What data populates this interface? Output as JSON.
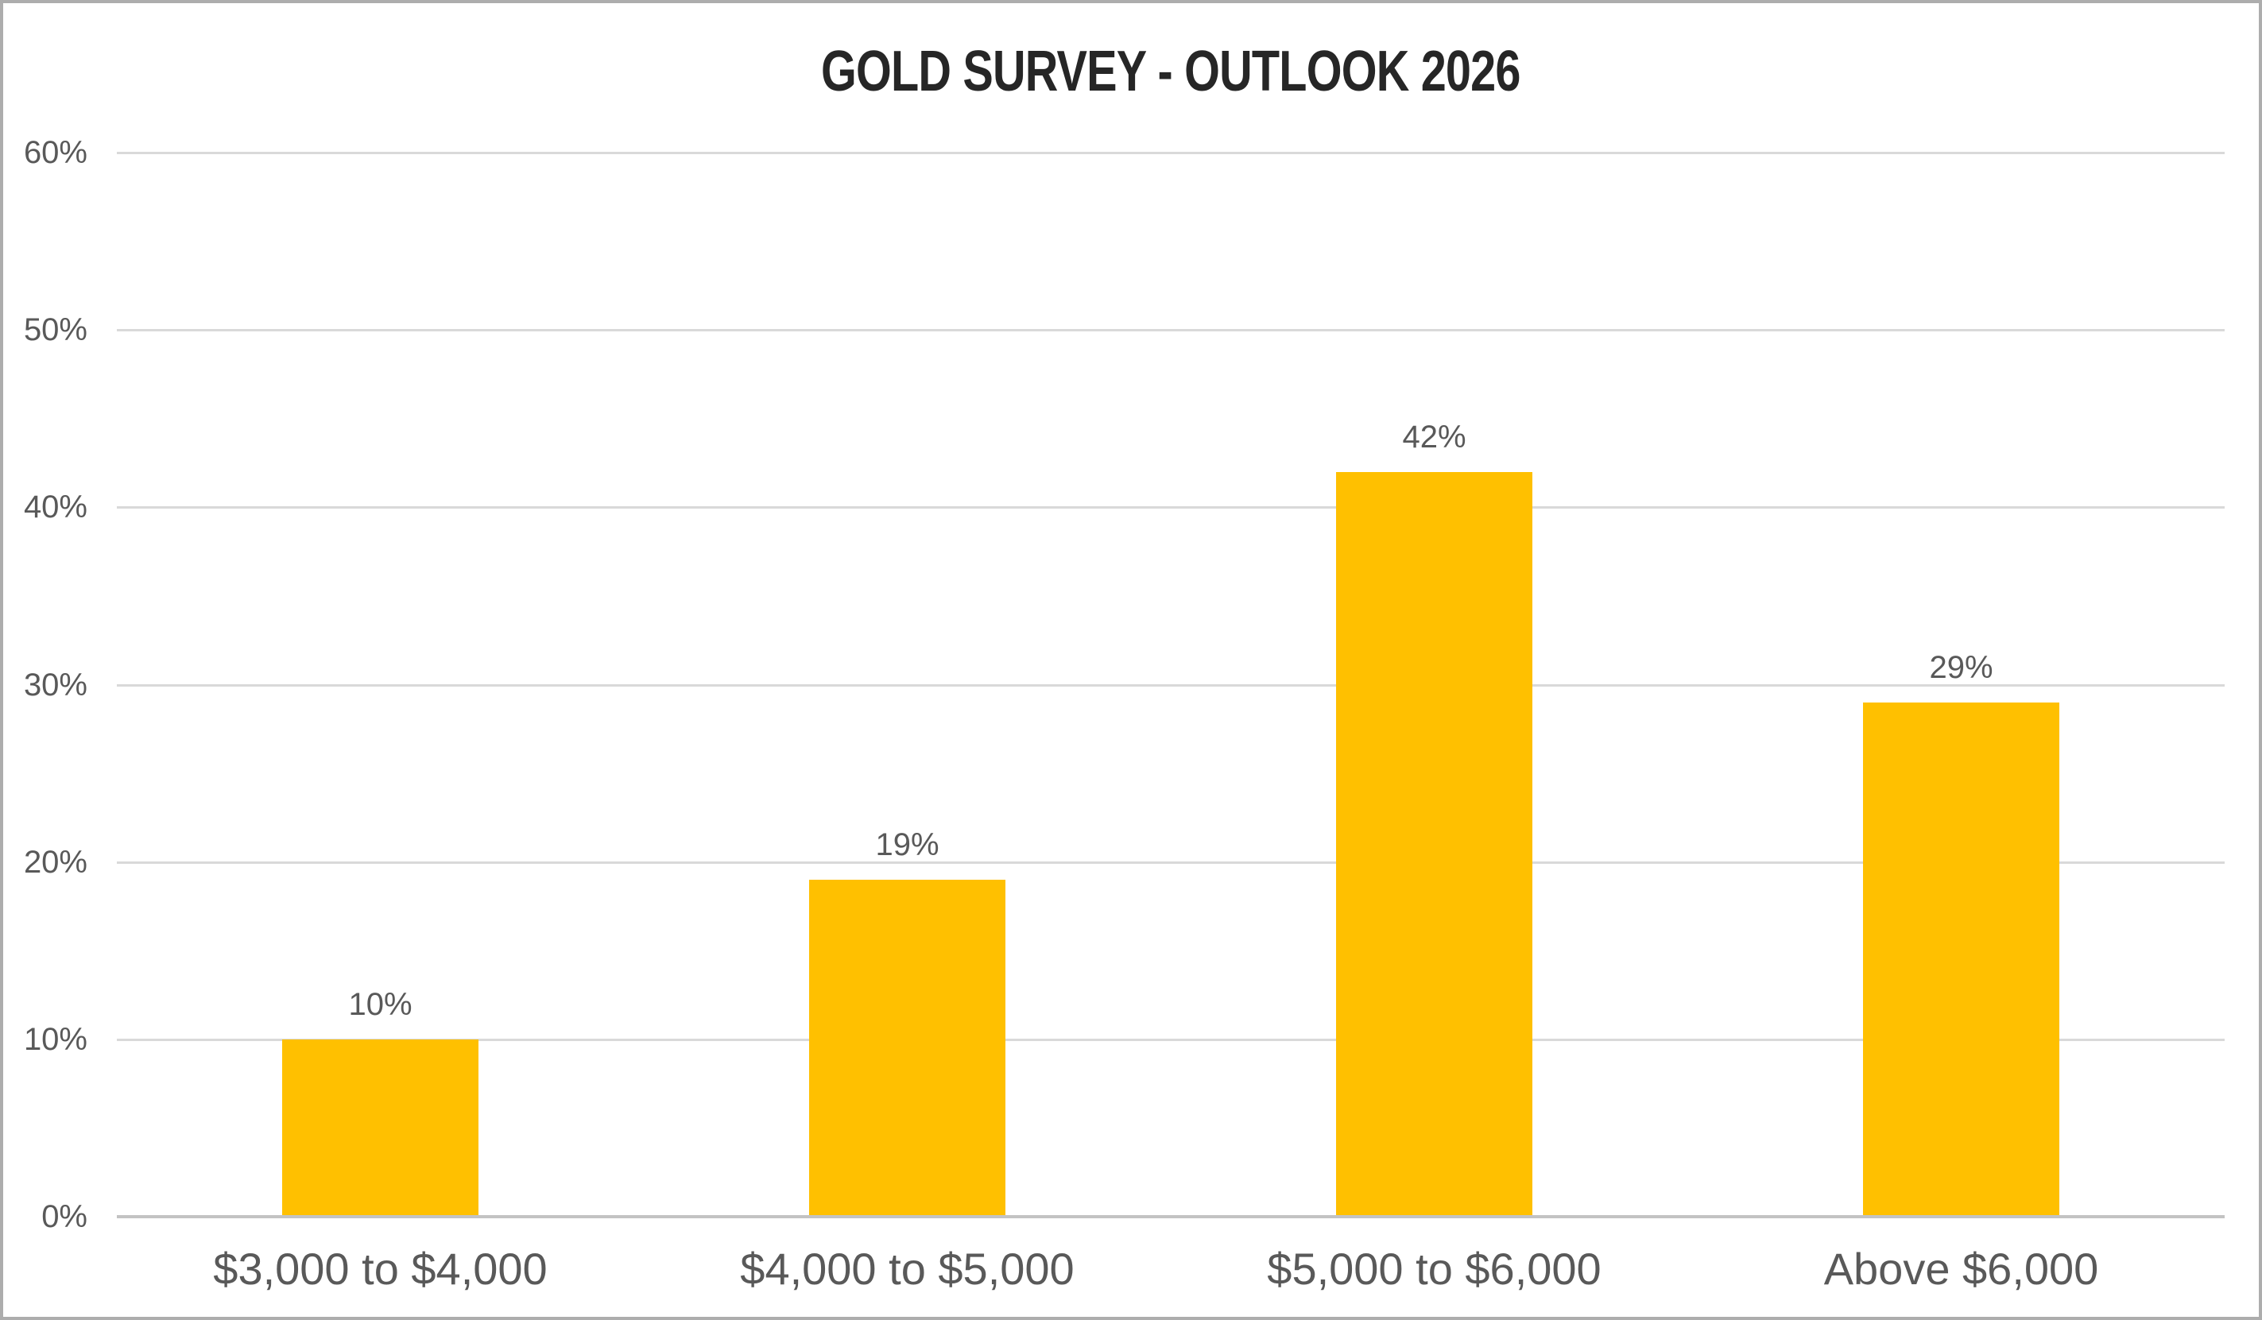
{
  "chart_data": {
    "type": "bar",
    "title": "GOLD SURVEY - OUTLOOK 2026",
    "categories": [
      "$3,000 to $4,000",
      "$4,000 to $5,000",
      "$5,000 to $6,000",
      "Above $6,000"
    ],
    "values": [
      10,
      19,
      42,
      29
    ],
    "data_labels": [
      "10%",
      "19%",
      "42%",
      "29%"
    ],
    "xlabel": "",
    "ylabel": "",
    "ylim": [
      0,
      60
    ],
    "ytick_step": 10,
    "ytick_labels": [
      "0%",
      "10%",
      "20%",
      "30%",
      "40%",
      "50%",
      "60%"
    ],
    "grid": "horizontal",
    "legend": "none",
    "colors": {
      "bar": "#FFC000",
      "gridline": "#D9D9D9",
      "axis_line": "#C3C3C3",
      "tick_label": "#595959",
      "category_label": "#595959",
      "data_label": "#595959",
      "title": "#262626",
      "background": "#FFFFFF",
      "border": "#ADADAD"
    }
  }
}
